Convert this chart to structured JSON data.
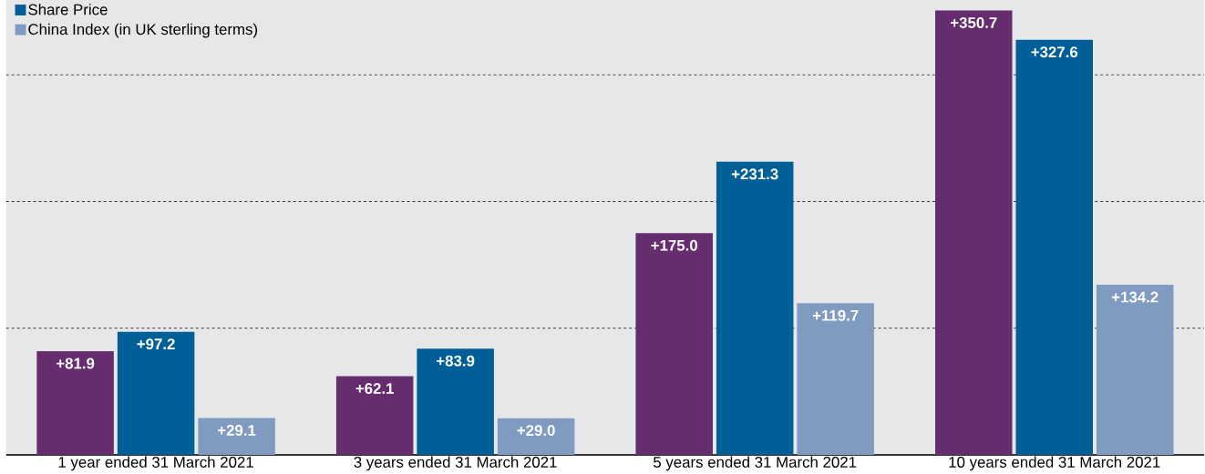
{
  "chart_data": {
    "type": "bar",
    "categories": [
      "1 year ended 31 March 2021",
      "3 years ended 31 March 2021",
      "5 years ended 31 March 2021",
      "10 years ended 31 March 2021"
    ],
    "series": [
      {
        "color": "#652d6e",
        "values": [
          81.9,
          62.1,
          175.0,
          350.7
        ],
        "value_labels": [
          "+81.9",
          "+62.1",
          "+175.0",
          "+350.7"
        ]
      },
      {
        "name": "Share Price",
        "color": "#005f96",
        "values": [
          97.2,
          83.9,
          231.3,
          327.6
        ],
        "value_labels": [
          "+97.2",
          "+83.9",
          "+231.3",
          "+327.6"
        ]
      },
      {
        "name": "China Index (in UK sterling terms)",
        "color": "#7f9bc0",
        "values": [
          29.1,
          29.0,
          119.7,
          134.2
        ],
        "value_labels": [
          "+29.1",
          "+29.0",
          "+119.7",
          "+134.2"
        ]
      }
    ],
    "ylim": [
      0,
      359
    ],
    "yticks": [
      {
        "value": 100,
        "label": null
      },
      {
        "value": 200,
        "label": null
      },
      {
        "value": 300,
        "label": null
      }
    ],
    "grid": "y",
    "tick_labels": "x",
    "legend": "top left"
  }
}
